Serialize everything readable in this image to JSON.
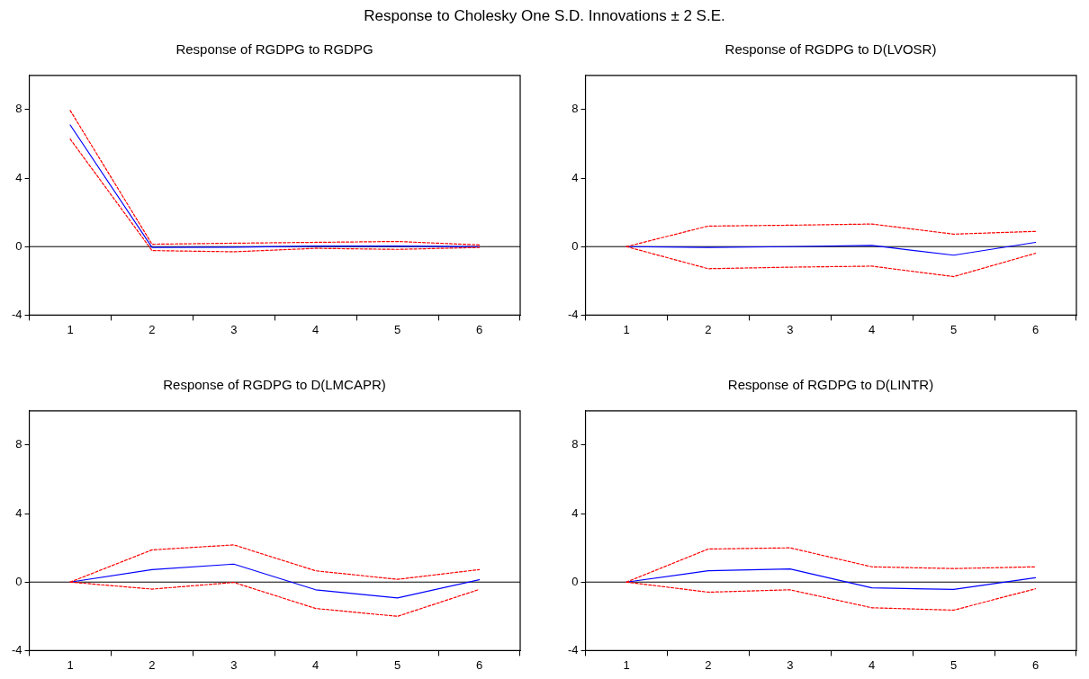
{
  "chart_data": [
    {
      "type": "line",
      "title": "Response of RGDPG to RGDPG",
      "annotations": [
        "Response to Cholesky One S.D. Innovations ± 2 S.E."
      ],
      "categories": [
        "1",
        "2",
        "3",
        "4",
        "5",
        "6"
      ],
      "ylim": [
        -4,
        10
      ],
      "yticks": [
        -4,
        0,
        4,
        8
      ],
      "ref_lines": [
        {
          "axis": "y",
          "value": 0,
          "color": "#000000"
        }
      ],
      "series": [
        {
          "color": "#0000ff",
          "line_style": "solid",
          "values": [
            7.1,
            -0.05,
            -0.03,
            0.03,
            0.03,
            0.0
          ]
        },
        {
          "color": "#ff0000",
          "line_style": "dashed",
          "values": [
            7.95,
            0.14,
            0.2,
            0.25,
            0.3,
            0.1
          ]
        },
        {
          "color": "#ff0000",
          "line_style": "dashed",
          "values": [
            6.28,
            -0.23,
            -0.3,
            -0.1,
            -0.16,
            -0.05
          ]
        }
      ]
    },
    {
      "type": "line",
      "title": "Response of RGDPG to D(LVOSR)",
      "categories": [
        "1",
        "2",
        "3",
        "4",
        "5",
        "6"
      ],
      "ylim": [
        -4,
        10
      ],
      "yticks": [
        -4,
        0,
        4,
        8
      ],
      "ref_lines": [
        {
          "axis": "y",
          "value": 0,
          "color": "#000000"
        }
      ],
      "series": [
        {
          "color": "#0000ff",
          "line_style": "solid",
          "values": [
            0,
            -0.05,
            0,
            0.07,
            -0.5,
            0.25
          ]
        },
        {
          "color": "#ff0000",
          "line_style": "dashed",
          "values": [
            0,
            1.2,
            1.25,
            1.32,
            0.73,
            0.89
          ]
        },
        {
          "color": "#ff0000",
          "line_style": "dashed",
          "values": [
            0,
            -1.29,
            -1.2,
            -1.14,
            -1.75,
            -0.39
          ]
        }
      ]
    },
    {
      "type": "line",
      "title": "Response of RGDPG to D(LMCAPR)",
      "categories": [
        "1",
        "2",
        "3",
        "4",
        "5",
        "6"
      ],
      "ylim": [
        -4,
        10
      ],
      "yticks": [
        -4,
        0,
        4,
        8
      ],
      "ref_lines": [
        {
          "axis": "y",
          "value": 0,
          "color": "#000000"
        }
      ],
      "series": [
        {
          "color": "#0000ff",
          "line_style": "solid",
          "values": [
            0,
            0.73,
            1.05,
            -0.45,
            -0.93,
            0.14
          ]
        },
        {
          "color": "#ff0000",
          "line_style": "dashed",
          "values": [
            0,
            1.88,
            2.17,
            0.66,
            0.16,
            0.73
          ]
        },
        {
          "color": "#ff0000",
          "line_style": "dashed",
          "values": [
            0,
            -0.41,
            -0.02,
            -1.54,
            -2.0,
            -0.43
          ]
        }
      ]
    },
    {
      "type": "line",
      "title": "Response of RGDPG to D(LINTR)",
      "categories": [
        "1",
        "2",
        "3",
        "4",
        "5",
        "6"
      ],
      "ylim": [
        -4,
        10
      ],
      "yticks": [
        -4,
        0,
        4,
        8
      ],
      "ref_lines": [
        {
          "axis": "y",
          "value": 0,
          "color": "#000000"
        }
      ],
      "series": [
        {
          "color": "#0000ff",
          "line_style": "solid",
          "values": [
            0,
            0.66,
            0.77,
            -0.34,
            -0.43,
            0.25
          ]
        },
        {
          "color": "#ff0000",
          "line_style": "dashed",
          "values": [
            0,
            1.93,
            2.0,
            0.89,
            0.79,
            0.89
          ]
        },
        {
          "color": "#ff0000",
          "line_style": "dashed",
          "values": [
            0,
            -0.59,
            -0.45,
            -1.5,
            -1.64,
            -0.39
          ]
        }
      ]
    }
  ]
}
